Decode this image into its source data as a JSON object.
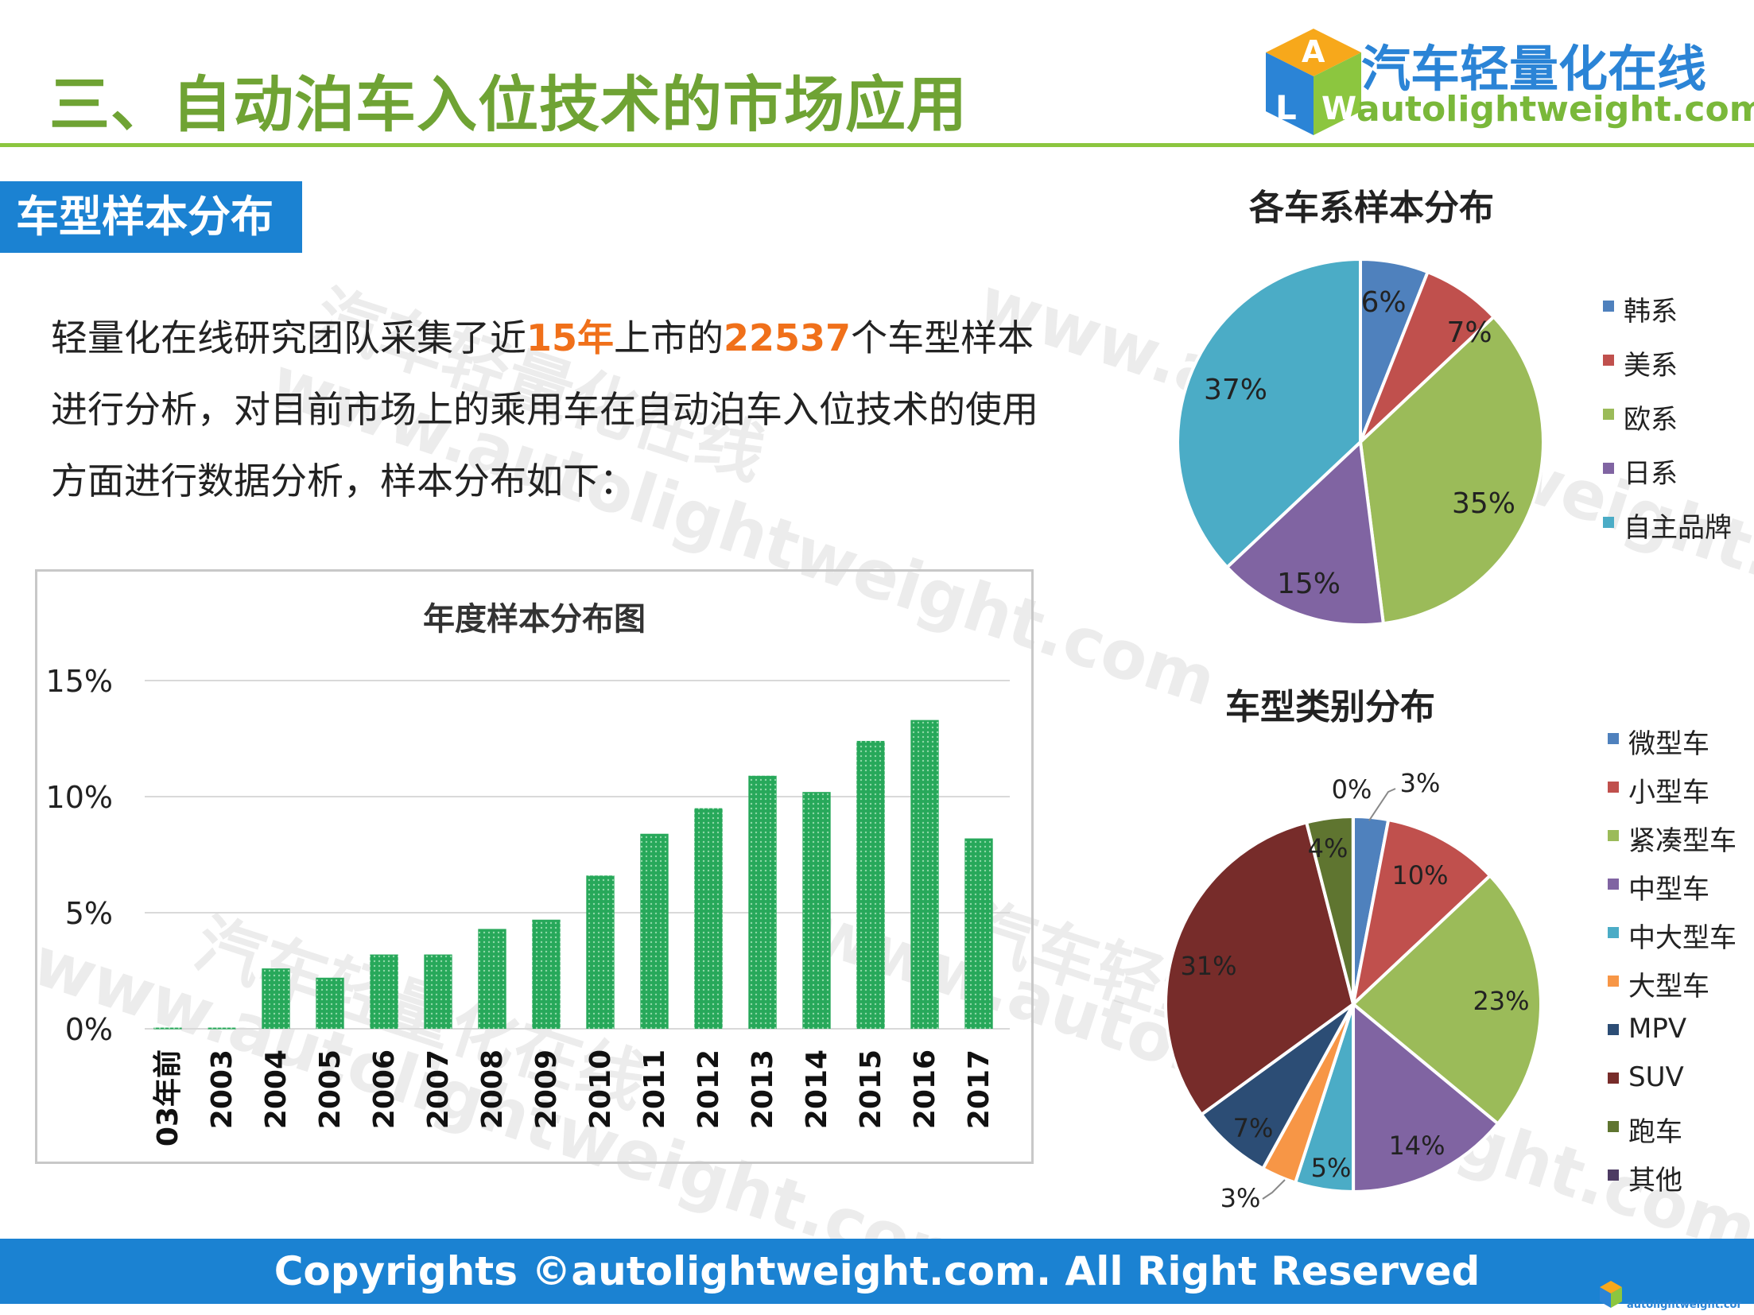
{
  "header": {
    "title": "三、自动泊车入位技术的市场应用",
    "logo_cn": "汽车轻量化在线",
    "logo_en": "autolightweight.com"
  },
  "section_tag": "车型样本分布",
  "intro": {
    "p1": "轻量化在线研究团队采集了近",
    "h1": "15年",
    "p2": "上市的",
    "h2": "22537",
    "p3": "个车型样本进行分析，对目前市场上的乘用车在自动泊车入位技术的使用方面进行数据分析，样本分布如下："
  },
  "watermarks": [
    "汽车轻量化在线",
    "www.autolightweight.com"
  ],
  "footer": {
    "text": "Copyrights ©autolightweight.com. All Right Reserved",
    "mini_logo": "autolightweight.com"
  },
  "colors": {
    "accent_green": "#6fa334",
    "footer_blue": "#1b82d2",
    "bar_green": "#27a85a",
    "highlight_orange": "#f0701a"
  },
  "chart_data": [
    {
      "type": "bar",
      "title": "年度样本分布图",
      "categories": [
        "03年前",
        "2003",
        "2004",
        "2005",
        "2006",
        "2007",
        "2008",
        "2009",
        "2010",
        "2011",
        "2012",
        "2013",
        "2014",
        "2015",
        "2016",
        "2017"
      ],
      "values": [
        0.05,
        0.05,
        2.6,
        2.2,
        3.2,
        3.2,
        4.3,
        4.7,
        6.6,
        8.4,
        9.5,
        10.9,
        10.2,
        12.4,
        13.3,
        8.2
      ],
      "yticks": [
        "0%",
        "5%",
        "10%",
        "15%"
      ],
      "ylim": [
        0,
        15
      ],
      "grid": true,
      "color": "#27a85a"
    },
    {
      "type": "pie",
      "title": "各车系样本分布",
      "slices": [
        {
          "name": "韩系",
          "value": 6,
          "label": "6%",
          "color": "#4f81bd"
        },
        {
          "name": "美系",
          "value": 7,
          "label": "7%",
          "color": "#c0504d"
        },
        {
          "name": "欧系",
          "value": 35,
          "label": "35%",
          "color": "#9bbb59"
        },
        {
          "name": "日系",
          "value": 15,
          "label": "15%",
          "color": "#8064a2"
        },
        {
          "name": "自主品牌",
          "value": 37,
          "label": "37%",
          "color": "#4bacc6"
        }
      ],
      "legend": "right"
    },
    {
      "type": "pie",
      "title": "车型类别分布",
      "slices": [
        {
          "name": "微型车",
          "value": 3,
          "label": "3%",
          "color": "#4f81bd"
        },
        {
          "name": "小型车",
          "value": 10,
          "label": "10%",
          "color": "#c0504d"
        },
        {
          "name": "紧凑型车",
          "value": 23,
          "label": "23%",
          "color": "#9bbb59"
        },
        {
          "name": "中型车",
          "value": 14,
          "label": "14%",
          "color": "#8064a2"
        },
        {
          "name": "中大型车",
          "value": 5,
          "label": "5%",
          "color": "#4bacc6"
        },
        {
          "name": "大型车",
          "value": 3,
          "label": "3%",
          "color": "#f79646"
        },
        {
          "name": "MPV",
          "value": 7,
          "label": "7%",
          "color": "#2c4d75"
        },
        {
          "name": "SUV",
          "value": 31,
          "label": "31%",
          "color": "#772c2a"
        },
        {
          "name": "跑车",
          "value": 4,
          "label": "4%",
          "color": "#5f7530"
        },
        {
          "name": "其他",
          "value": 0.01,
          "label": "0%",
          "color": "#4d3b62"
        }
      ],
      "legend": "right"
    }
  ]
}
